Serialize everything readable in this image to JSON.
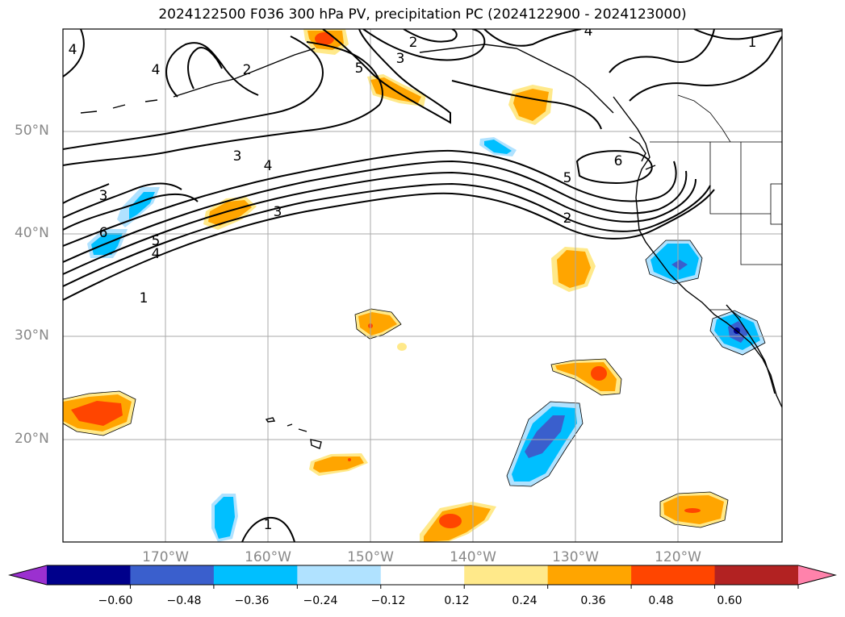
{
  "title": "2024122500 F036 300 hPa PV, precipitation PC (2024122900 - 2024123000)",
  "lat_labels": [
    "50°N",
    "40°N",
    "30°N",
    "20°N"
  ],
  "lon_labels": [
    "170°W",
    "160°W",
    "150°W",
    "140°W",
    "130°W",
    "120°W"
  ],
  "colorbar": {
    "ticks": [
      "−0.60",
      "−0.48",
      "−0.36",
      "−0.24",
      "−0.12",
      "0.12",
      "0.24",
      "0.36",
      "0.48",
      "0.60"
    ],
    "colors": [
      "#9b30d0",
      "#00008b",
      "#3a5fcd",
      "#00bfff",
      "#b0e2ff",
      "#ffffff",
      "#ffe98a",
      "#ffa500",
      "#ff4500",
      "#b22222",
      "#ff82ab"
    ]
  },
  "pv_contour_labels": [
    "1",
    "2",
    "3",
    "4",
    "5",
    "6"
  ],
  "colors": {
    "frame": "#000000",
    "grid": "#aaaaaa",
    "label_gray": "#888888"
  }
}
